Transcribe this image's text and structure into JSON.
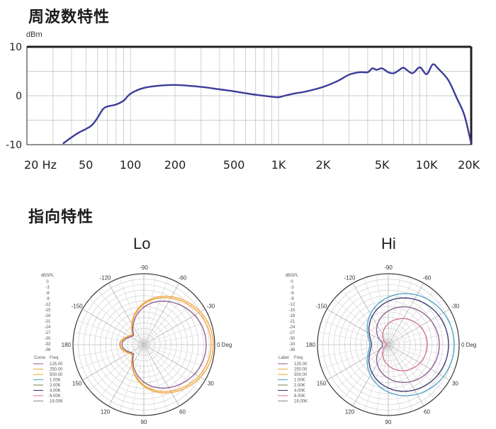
{
  "sections": {
    "frequency_title": "周波数特性",
    "directivity_title": "指向特性"
  },
  "colors": {
    "curve": "#3c3c9a",
    "grid": "#bdbdbd",
    "axis": "#222222",
    "polar_orange": "#f0a43a",
    "polar_purple": "#8a5a8a",
    "polar_blue": "#4aa0c8",
    "polar_navy": "#33336e",
    "polar_pink": "#d0708a"
  },
  "chart_data": [
    {
      "type": "line",
      "xscale": "log",
      "ylabel": "dBm",
      "xlabel": "",
      "xlim": [
        20,
        20000
      ],
      "ylim": [
        -10,
        10
      ],
      "y_ticks": [
        "10",
        "0",
        "-10"
      ],
      "x_ticks": [
        "20 Hz",
        "50",
        "100",
        "200",
        "500",
        "1K",
        "2K",
        "5K",
        "10K",
        "20K"
      ],
      "x_tick_values": [
        20,
        50,
        100,
        200,
        500,
        1000,
        2000,
        5000,
        10000,
        20000
      ],
      "grid": true,
      "series": [
        {
          "x": [
            35,
            40,
            45,
            50,
            55,
            60,
            65,
            70,
            80,
            90,
            100,
            120,
            150,
            200,
            300,
            400,
            500,
            700,
            900,
            1000,
            1100,
            1300,
            1500,
            2000,
            2500,
            3000,
            3500,
            4000,
            4300,
            4600,
            5000,
            5500,
            6000,
            6500,
            7000,
            8000,
            9000,
            10000,
            11000,
            12000,
            14000,
            16000,
            18000,
            20000
          ],
          "y": [
            -9.8,
            -8.5,
            -7.5,
            -6.8,
            -6,
            -4.5,
            -2.8,
            -2.2,
            -1.8,
            -1,
            0.4,
            1.5,
            2,
            2.2,
            1.8,
            1.3,
            0.9,
            0.2,
            -0.2,
            -0.3,
            0,
            0.5,
            0.8,
            1.8,
            3,
            4.3,
            4.8,
            4.8,
            5.6,
            5.3,
            5.6,
            4.8,
            4.6,
            5.2,
            5.7,
            4.6,
            5.8,
            4.4,
            6.4,
            5.5,
            3.2,
            -0.5,
            -4,
            -9.8
          ]
        }
      ]
    },
    {
      "type": "polar",
      "title": "Lo",
      "unit_label": "dBSPL",
      "angle_labels": [
        "0 Deg",
        "30",
        "60",
        "90",
        "120",
        "150",
        "180",
        "-150",
        "-120",
        "-90",
        "-60",
        "-30"
      ],
      "scale_labels": [
        "0",
        "-3",
        "-6",
        "-9",
        "-12",
        "-15",
        "-18",
        "-21",
        "-24",
        "-27",
        "-30",
        "-33",
        "-36"
      ],
      "legend_header": [
        "Curve",
        "Freq"
      ],
      "legend": [
        "125.00",
        "250.00",
        "500.00",
        "1.00K",
        "2.00K",
        "4.00K",
        "8.00K",
        "16.00K"
      ],
      "series": [
        {
          "name": "125.00",
          "color": "#f0a43a",
          "level": 0.98,
          "shape": "cardioid"
        },
        {
          "name": "250.00",
          "color": "#f0a43a",
          "level": 0.95,
          "shape": "cardioid"
        },
        {
          "name": "500.00",
          "color": "#8a5a8a",
          "level": 0.88,
          "shape": "cardioid"
        }
      ]
    },
    {
      "type": "polar",
      "title": "Hi",
      "unit_label": "dBSPL",
      "angle_labels": [
        "0 Deg",
        "30",
        "60",
        "90",
        "120",
        "150",
        "180",
        "-150",
        "-120",
        "-90",
        "-60",
        "-30"
      ],
      "scale_labels": [
        "0",
        "-3",
        "-6",
        "-9",
        "-12",
        "-15",
        "-18",
        "-21",
        "-24",
        "-27",
        "-30",
        "-33",
        "-36"
      ],
      "legend_header": [
        "Label",
        "Freq"
      ],
      "legend": [
        "125.00",
        "250.00",
        "500.00",
        "1.00K",
        "2.00K",
        "4.00K",
        "8.00K",
        "16.00K"
      ],
      "series": [
        {
          "name": "4.00K",
          "color": "#4aa0c8",
          "level": 0.93,
          "shape": "wide"
        },
        {
          "name": "8.00K",
          "color": "#33336e",
          "level": 0.85,
          "shape": "wide"
        },
        {
          "name": "2.00K",
          "color": "#8a5a8a",
          "level": 0.72,
          "shape": "mid"
        },
        {
          "name": "16.00K",
          "color": "#d0708a",
          "level": 0.55,
          "shape": "narrow"
        }
      ]
    }
  ]
}
